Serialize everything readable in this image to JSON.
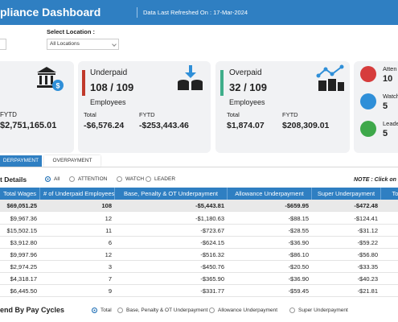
{
  "header": {
    "title": "pliance Dashboard",
    "refreshed": "Data Last Refreshed On : 17-Mar-2024"
  },
  "filters": {
    "location_label": "Select Location :",
    "location_value": "All Locations"
  },
  "cards": {
    "total": {
      "fytd_label": "FYTD",
      "fytd_value": "$2,751,165.01"
    },
    "underpaid": {
      "title": "Underpaid",
      "count": "108 / 109",
      "unit": "Employees",
      "total_label": "Total",
      "total_value": "-$6,576.24",
      "fytd_label": "FYTD",
      "fytd_value": "-$253,443.46"
    },
    "overpaid": {
      "title": "Overpaid",
      "count": "32 / 109",
      "unit": "Employees",
      "total_label": "Total",
      "total_value": "$1,874.07",
      "fytd_label": "FYTD",
      "fytd_value": "$208,309.01"
    },
    "status": [
      {
        "label": "Atten",
        "value": "10"
      },
      {
        "label": "Watch",
        "value": "5"
      },
      {
        "label": "Leade",
        "value": "5"
      }
    ]
  },
  "tabs": [
    "DERPAYMENT",
    "OVERPAYMENT"
  ],
  "details": {
    "title": "t Details",
    "filters": [
      "All",
      "ATTENTION",
      "WATCH",
      "LEADER"
    ],
    "note": "NOTE : Click on a"
  },
  "table": {
    "columns": [
      "Total Wages",
      "# of Underpaid Employees",
      "Base, Penalty & OT Underpayment",
      "Allowance Underpayment",
      "Super Underpayment",
      "To"
    ],
    "total_row": [
      "$69,051.25",
      "108",
      "-$5,443.81",
      "-$659.95",
      "-$472.48"
    ],
    "rows": [
      [
        "$9,967.36",
        "12",
        "-$1,180.63",
        "-$88.15",
        "-$124.41"
      ],
      [
        "$15,502.15",
        "11",
        "-$723.67",
        "-$28.55",
        "-$31.12"
      ],
      [
        "$3,912.80",
        "6",
        "-$624.15",
        "-$36.90",
        "-$59.22"
      ],
      [
        "$9,997.96",
        "12",
        "-$516.32",
        "-$86.10",
        "-$56.80"
      ],
      [
        "$2,974.25",
        "3",
        "-$450.76",
        "-$20.50",
        "-$33.35"
      ],
      [
        "$4,318.17",
        "7",
        "-$365.90",
        "-$36.90",
        "-$40.23"
      ],
      [
        "$6,445.50",
        "9",
        "-$331.77",
        "-$59.45",
        "-$21.81"
      ]
    ]
  },
  "trend": {
    "title": "end By Pay Cycles",
    "options": [
      "Total",
      "Base, Penalty & OT Underpayment",
      "Allowance Underpayment",
      "Super Underpayment"
    ]
  }
}
